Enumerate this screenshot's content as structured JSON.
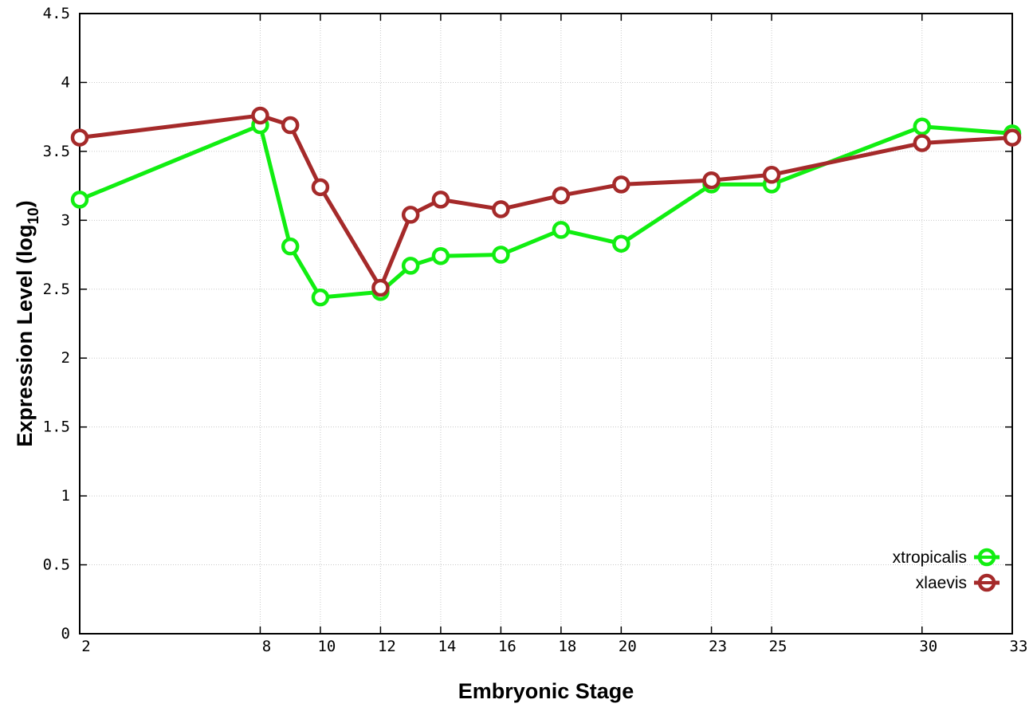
{
  "chart_data": {
    "type": "line",
    "xlabel": "Embryonic Stage",
    "ylabel": "Expression Level (log",
    "ylabel_sub": "10",
    "ylabel_end": ")",
    "x": [
      2,
      8,
      9,
      10,
      12,
      13,
      14,
      16,
      18,
      20,
      23,
      25,
      30,
      33
    ],
    "x_tick_labels": [
      "2",
      "8",
      "10",
      "12",
      "14",
      "16",
      "18",
      "20",
      "23",
      "25",
      "30",
      "33"
    ],
    "y_tick_labels": [
      "0",
      "0.5",
      "1",
      "1.5",
      "2",
      "2.5",
      "3",
      "3.5",
      "4",
      "4.5"
    ],
    "xlim": [
      2,
      33
    ],
    "ylim": [
      0,
      4.5
    ],
    "grid": true,
    "legend_position": "bottom-right",
    "series": [
      {
        "name": "xtropicalis",
        "color": "#11ee11",
        "marker": "open-circle",
        "values": [
          3.15,
          3.69,
          2.81,
          2.44,
          2.48,
          2.67,
          2.74,
          2.75,
          2.93,
          2.83,
          3.26,
          3.26,
          3.68,
          3.63
        ]
      },
      {
        "name": "xlaevis",
        "color": "#a52a2a",
        "marker": "open-circle",
        "values": [
          3.6,
          3.76,
          3.69,
          3.24,
          2.51,
          3.04,
          3.15,
          3.08,
          3.18,
          3.26,
          3.29,
          3.33,
          3.56,
          3.6
        ]
      }
    ]
  }
}
